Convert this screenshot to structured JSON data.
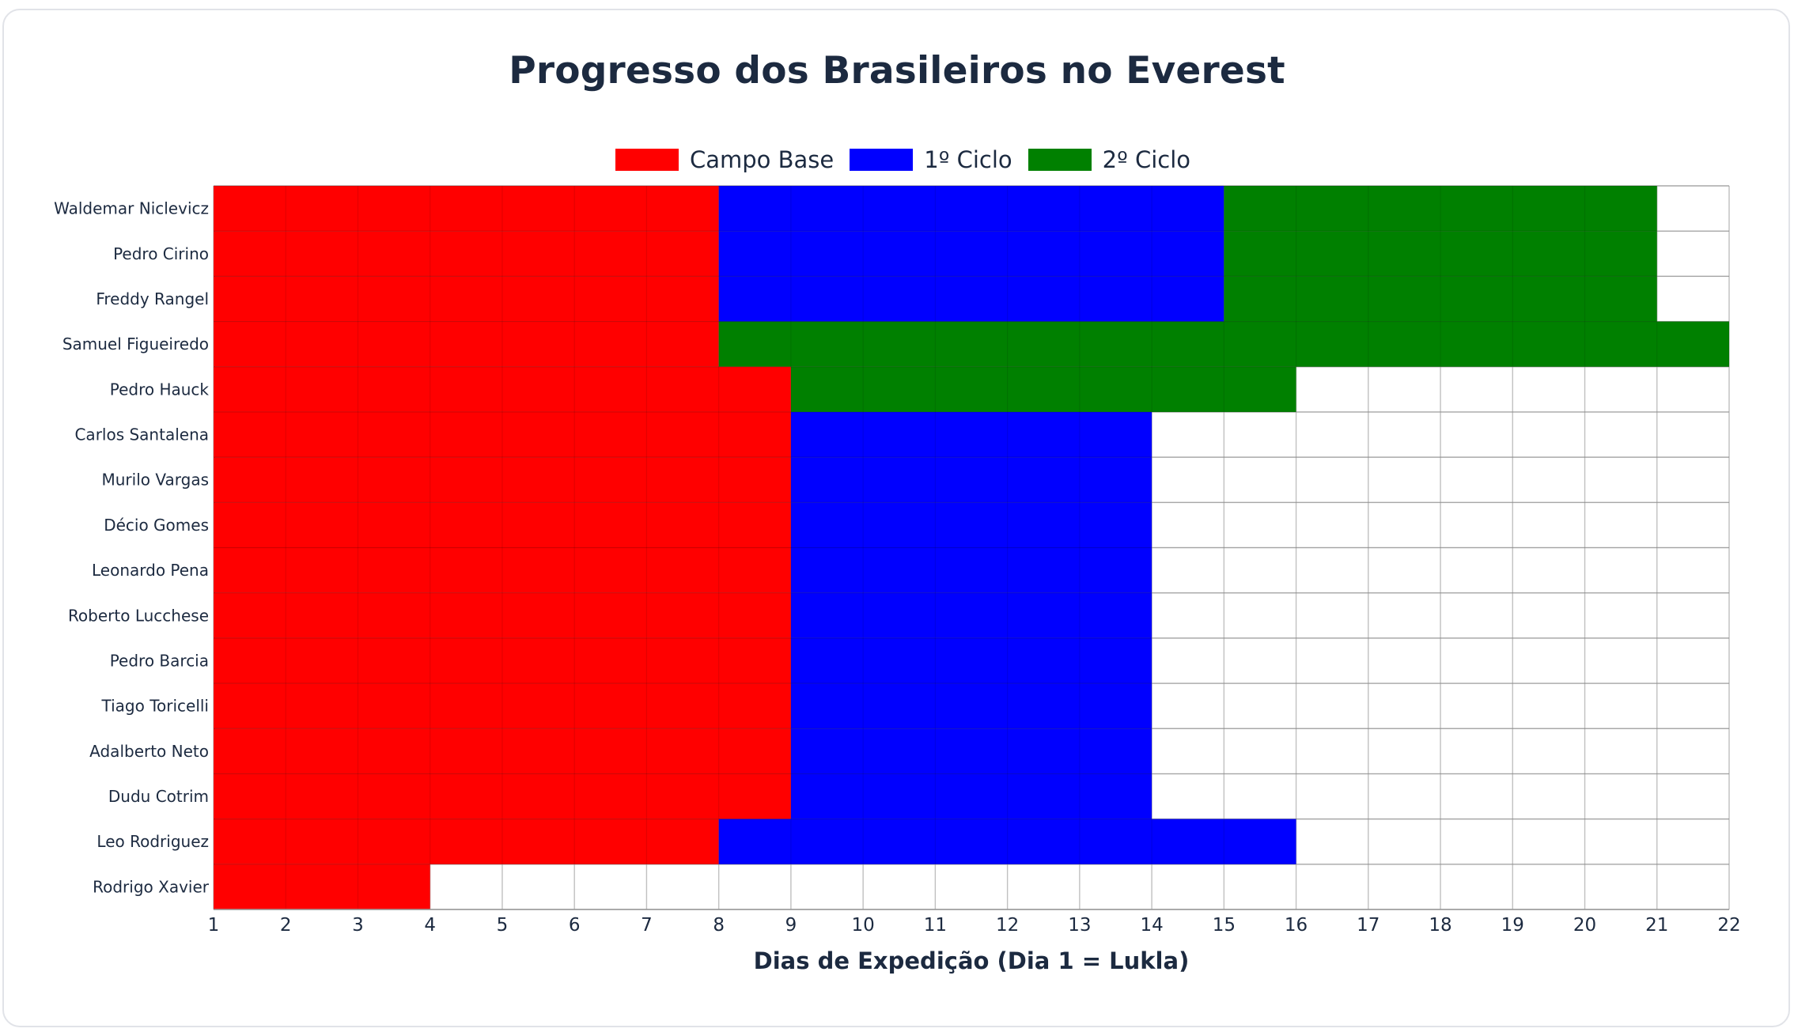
{
  "chart_data": {
    "type": "bar",
    "orientation": "horizontal",
    "stacked": true,
    "title": "Progresso dos Brasileiros no Everest",
    "xlabel": "Dias de Expedição (Dia 1 = Lukla)",
    "ylabel": "",
    "xlim": [
      1,
      22
    ],
    "xticks": [
      1,
      2,
      3,
      4,
      5,
      6,
      7,
      8,
      9,
      10,
      11,
      12,
      13,
      14,
      15,
      16,
      17,
      18,
      19,
      20,
      21,
      22
    ],
    "grid": true,
    "legend_position": "top-center",
    "categories": [
      "Waldemar Niclevicz",
      "Pedro Cirino",
      "Freddy Rangel",
      "Samuel Figueiredo",
      "Pedro Hauck",
      "Carlos Santalena",
      "Murilo Vargas",
      "Décio Gomes",
      "Leonardo Pena",
      "Roberto Lucchese",
      "Pedro Barcia",
      "Tiago Toricelli",
      "Adalberto Neto",
      "Dudu Cotrim",
      "Leo Rodriguez",
      "Rodrigo Xavier"
    ],
    "series": [
      {
        "name": "Campo Base",
        "color": "#ff0000",
        "values": [
          7,
          7,
          7,
          7,
          8,
          8,
          8,
          8,
          8,
          8,
          8,
          8,
          8,
          8,
          7,
          3
        ]
      },
      {
        "name": "1º Ciclo",
        "color": "#0000ff",
        "values": [
          7,
          7,
          7,
          0,
          0,
          5,
          5,
          5,
          5,
          5,
          5,
          5,
          5,
          5,
          8,
          0
        ]
      },
      {
        "name": "2º Ciclo",
        "color": "#008000",
        "values": [
          6,
          6,
          6,
          14,
          7,
          0,
          0,
          0,
          0,
          0,
          0,
          0,
          0,
          0,
          0,
          0
        ]
      }
    ]
  }
}
